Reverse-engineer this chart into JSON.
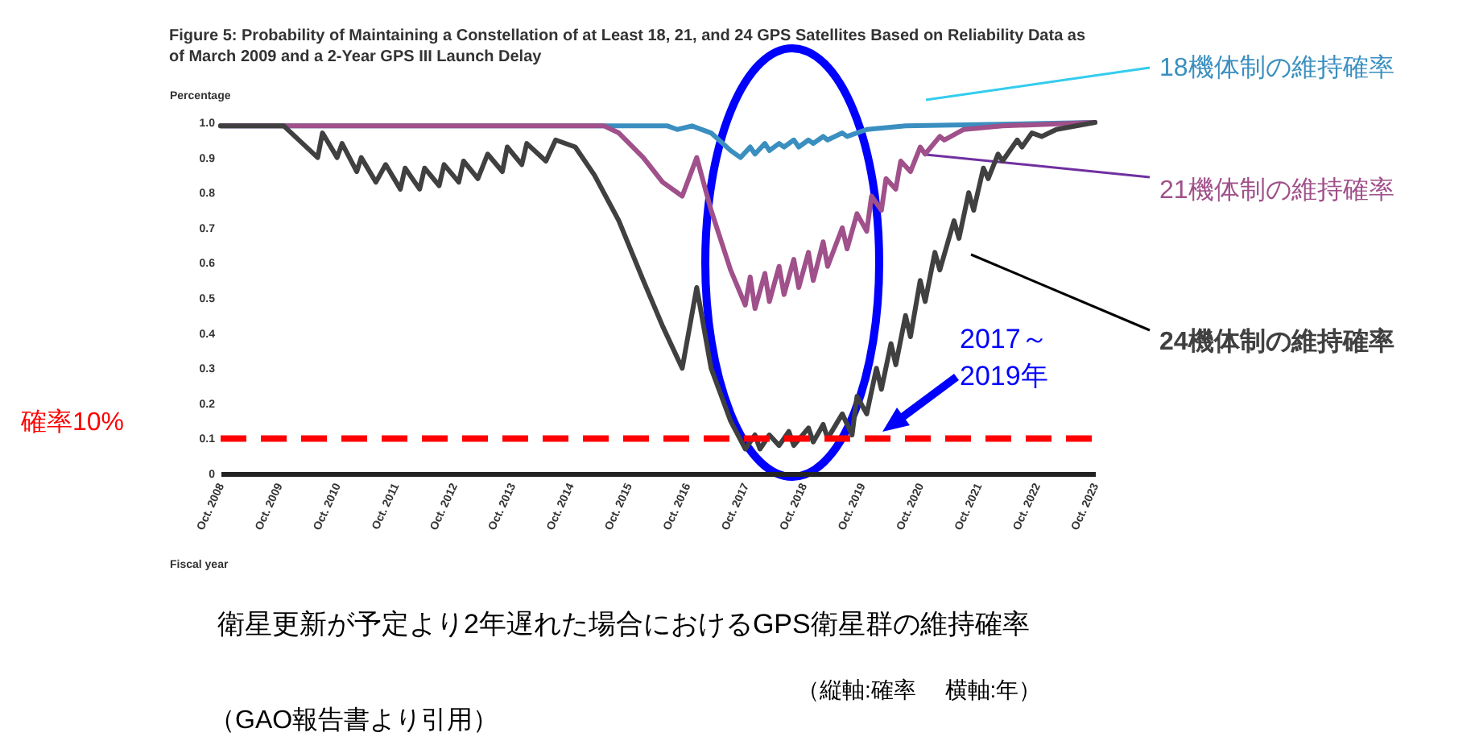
{
  "chart_data": {
    "type": "line",
    "title": "Figure 5: Probability of Maintaining a Constellation of at Least 18, 21, and 24 GPS Satellites Based on Reliability Data as of March 2009 and a 2-Year GPS III Launch Delay",
    "ylabel": "Percentage",
    "xlabel": "Fiscal year",
    "xlim": [
      "2008-10",
      "2023-10"
    ],
    "xticks": [
      {
        "value": "2008-10",
        "label": "Oct. 2008"
      },
      {
        "value": "2009-10",
        "label": "Oct. 2009"
      },
      {
        "value": "2010-10",
        "label": "Oct. 2010"
      },
      {
        "value": "2011-10",
        "label": "Oct. 2011"
      },
      {
        "value": "2012-10",
        "label": "Oct. 2012"
      },
      {
        "value": "2013-10",
        "label": "Oct. 2013"
      },
      {
        "value": "2014-10",
        "label": "Oct. 2014"
      },
      {
        "value": "2015-10",
        "label": "Oct. 2015"
      },
      {
        "value": "2016-10",
        "label": "Oct. 2016"
      },
      {
        "value": "2017-10",
        "label": "Oct. 2017"
      },
      {
        "value": "2018-10",
        "label": "Oct. 2018"
      },
      {
        "value": "2019-10",
        "label": "Oct. 2019"
      },
      {
        "value": "2020-10",
        "label": "Oct. 2020"
      },
      {
        "value": "2021-10",
        "label": "Oct. 2021"
      },
      {
        "value": "2022-10",
        "label": "Oct. 2022"
      },
      {
        "value": "2023-10",
        "label": "Oct. 2023"
      }
    ],
    "ylim": [
      0,
      1
    ],
    "yticks": [
      0,
      0.1,
      0.2,
      0.3,
      0.4,
      0.5,
      0.6,
      0.7,
      0.8,
      0.9,
      {
        "value": 1,
        "label": "1.0"
      }
    ],
    "grid": false,
    "series": [
      {
        "name": "18機体制の維持確率",
        "color": "#3a8fc0",
        "x": [
          "2008-10",
          "2016-06",
          "2016-08",
          "2016-11",
          "2017-03",
          "2017-07",
          "2017-09",
          "2017-11",
          "2017-12",
          "2018-02",
          "2018-03",
          "2018-05",
          "2018-06",
          "2018-08",
          "2018-09",
          "2018-11",
          "2018-12",
          "2019-02",
          "2019-03",
          "2019-06",
          "2019-07",
          "2019-11",
          "2020-07",
          "2023-10"
        ],
        "values": [
          0.99,
          0.99,
          0.98,
          0.99,
          0.97,
          0.92,
          0.9,
          0.93,
          0.91,
          0.94,
          0.92,
          0.94,
          0.93,
          0.95,
          0.93,
          0.95,
          0.94,
          0.96,
          0.95,
          0.97,
          0.96,
          0.98,
          0.99,
          1.0
        ]
      },
      {
        "name": "21機体制の維持確率",
        "color": "#a0508a",
        "x": [
          "2008-10",
          "2015-05",
          "2015-08",
          "2016-01",
          "2016-05",
          "2016-09",
          "2016-12",
          "2017-03",
          "2017-07",
          "2017-10",
          "2017-11",
          "2017-12",
          "2018-02",
          "2018-03",
          "2018-05",
          "2018-06",
          "2018-08",
          "2018-09",
          "2018-11",
          "2018-12",
          "2019-02",
          "2019-03",
          "2019-06",
          "2019-07",
          "2019-09",
          "2019-11",
          "2019-12",
          "2020-02",
          "2020-03",
          "2020-05",
          "2020-06",
          "2020-08",
          "2020-10",
          "2020-11",
          "2021-02",
          "2021-03",
          "2021-07",
          "2022-03",
          "2023-10"
        ],
        "values": [
          0.99,
          0.99,
          0.97,
          0.9,
          0.83,
          0.79,
          0.9,
          0.75,
          0.58,
          0.48,
          0.56,
          0.47,
          0.57,
          0.49,
          0.59,
          0.51,
          0.61,
          0.53,
          0.63,
          0.55,
          0.66,
          0.59,
          0.7,
          0.64,
          0.74,
          0.69,
          0.79,
          0.75,
          0.84,
          0.81,
          0.89,
          0.86,
          0.93,
          0.91,
          0.96,
          0.95,
          0.98,
          0.99,
          1.0
        ]
      },
      {
        "name": "24機体制の維持確率",
        "color": "#404040",
        "x": [
          "2008-10",
          "2009-11",
          "2010-06",
          "2010-07",
          "2010-10",
          "2010-11",
          "2011-02",
          "2011-03",
          "2011-06",
          "2011-08",
          "2011-11",
          "2011-12",
          "2012-03",
          "2012-04",
          "2012-07",
          "2012-08",
          "2012-11",
          "2012-12",
          "2013-03",
          "2013-05",
          "2013-08",
          "2013-09",
          "2013-12",
          "2014-01",
          "2014-05",
          "2014-07",
          "2014-11",
          "2015-03",
          "2015-08",
          "2016-01",
          "2016-05",
          "2016-09",
          "2016-12",
          "2017-03",
          "2017-07",
          "2017-10",
          "2017-12",
          "2018-01",
          "2018-03",
          "2018-05",
          "2018-07",
          "2018-08",
          "2018-11",
          "2018-12",
          "2019-02",
          "2019-03",
          "2019-06",
          "2019-08",
          "2019-09",
          "2019-11",
          "2020-01",
          "2020-02",
          "2020-04",
          "2020-05",
          "2020-07",
          "2020-08",
          "2020-10",
          "2020-11",
          "2021-01",
          "2021-02",
          "2021-05",
          "2021-06",
          "2021-08",
          "2021-09",
          "2021-11",
          "2021-12",
          "2022-02",
          "2022-03",
          "2022-06",
          "2022-07",
          "2022-09",
          "2022-11",
          "2023-02",
          "2023-10"
        ],
        "values": [
          0.99,
          0.99,
          0.9,
          0.97,
          0.9,
          0.94,
          0.86,
          0.9,
          0.83,
          0.88,
          0.81,
          0.87,
          0.81,
          0.87,
          0.82,
          0.88,
          0.83,
          0.89,
          0.84,
          0.91,
          0.86,
          0.93,
          0.88,
          0.94,
          0.89,
          0.95,
          0.93,
          0.85,
          0.72,
          0.55,
          0.42,
          0.3,
          0.53,
          0.3,
          0.15,
          0.07,
          0.11,
          0.07,
          0.11,
          0.08,
          0.12,
          0.08,
          0.13,
          0.09,
          0.14,
          0.1,
          0.17,
          0.11,
          0.22,
          0.17,
          0.3,
          0.24,
          0.37,
          0.31,
          0.45,
          0.39,
          0.55,
          0.49,
          0.63,
          0.58,
          0.72,
          0.67,
          0.8,
          0.75,
          0.87,
          0.84,
          0.91,
          0.89,
          0.95,
          0.93,
          0.97,
          0.96,
          0.98,
          1.0
        ]
      }
    ],
    "ref_lines": [
      {
        "axis": "y",
        "value": 0.1,
        "label": "確率10%",
        "color": "#ff0000",
        "line_style": "dashed"
      }
    ],
    "annotations": [
      "2017～2019年",
      "衛星更新が予定より2年遅れた場合におけるGPS衛星群の維持確率",
      "（縦軸:確率　 横軸:年）",
      "（GAO報告書より引用）"
    ]
  }
}
